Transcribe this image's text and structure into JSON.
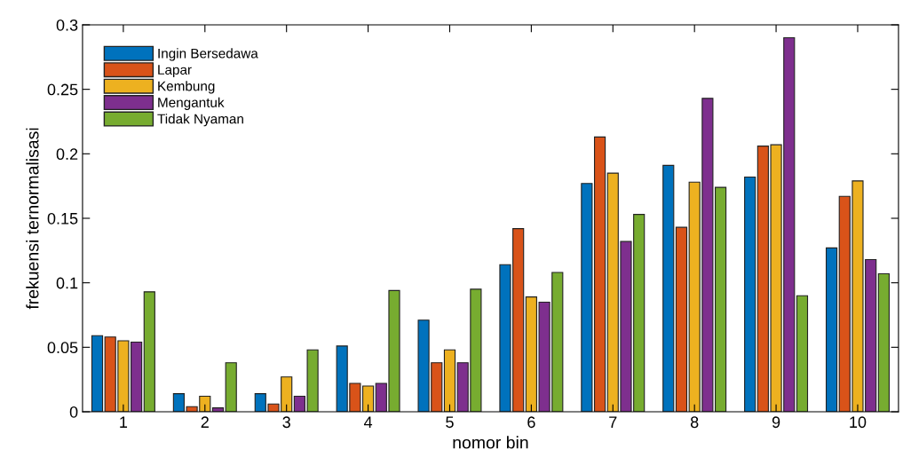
{
  "chart_data": {
    "type": "bar",
    "xlabel": "nomor bin",
    "ylabel": "frekuensi ternormalisasi",
    "categories": [
      "1",
      "2",
      "3",
      "4",
      "5",
      "6",
      "7",
      "8",
      "9",
      "10"
    ],
    "series": [
      {
        "name": "Ingin Bersedawa",
        "color": "#0072bd",
        "values": [
          0.059,
          0.014,
          0.014,
          0.051,
          0.071,
          0.114,
          0.177,
          0.191,
          0.182,
          0.127
        ]
      },
      {
        "name": "Lapar",
        "color": "#d95319",
        "values": [
          0.058,
          0.004,
          0.006,
          0.022,
          0.038,
          0.142,
          0.213,
          0.143,
          0.206,
          0.167
        ]
      },
      {
        "name": "Kembung",
        "color": "#edb120",
        "values": [
          0.055,
          0.012,
          0.027,
          0.02,
          0.048,
          0.089,
          0.185,
          0.178,
          0.207,
          0.179
        ]
      },
      {
        "name": "Mengantuk",
        "color": "#7e2f8e",
        "values": [
          0.054,
          0.003,
          0.012,
          0.022,
          0.038,
          0.085,
          0.132,
          0.243,
          0.29,
          0.118
        ]
      },
      {
        "name": "Tidak Nyaman",
        "color": "#77ac30",
        "values": [
          0.093,
          0.038,
          0.048,
          0.094,
          0.095,
          0.108,
          0.153,
          0.174,
          0.09,
          0.107
        ]
      }
    ],
    "ylim": [
      0,
      0.3
    ],
    "yticks": [
      0,
      0.05,
      0.1,
      0.15,
      0.2,
      0.25,
      0.3
    ],
    "grid": false,
    "legend": "top left"
  }
}
